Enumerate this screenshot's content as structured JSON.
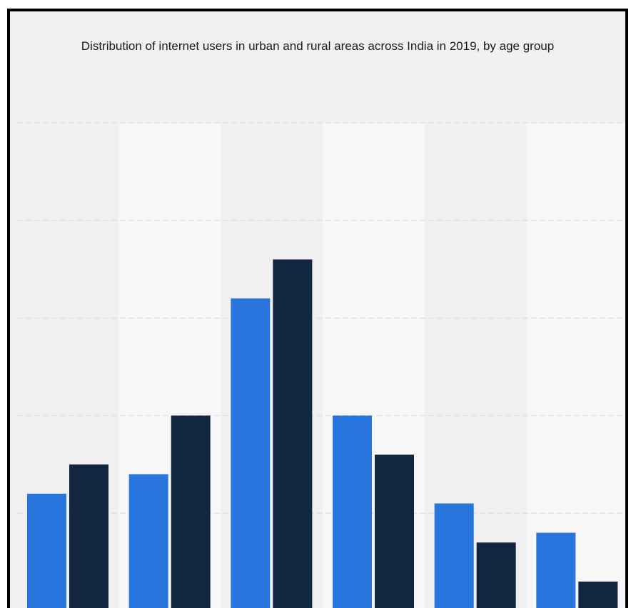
{
  "chart_data": {
    "type": "bar",
    "title": "Distribution of internet users in urban and rural areas across India in 2019, by age group",
    "xlabel": "",
    "ylabel": "",
    "ylim": [
      0,
      50
    ],
    "grid": true,
    "legend": "none",
    "categories": [
      "",
      "",
      "",
      "",
      "",
      ""
    ],
    "series": [
      {
        "color": "#2876dd",
        "values": [
          12,
          14,
          32,
          20,
          11,
          8
        ]
      },
      {
        "color": "#12263f",
        "values": [
          15,
          20,
          36,
          16,
          7,
          3
        ]
      }
    ]
  }
}
